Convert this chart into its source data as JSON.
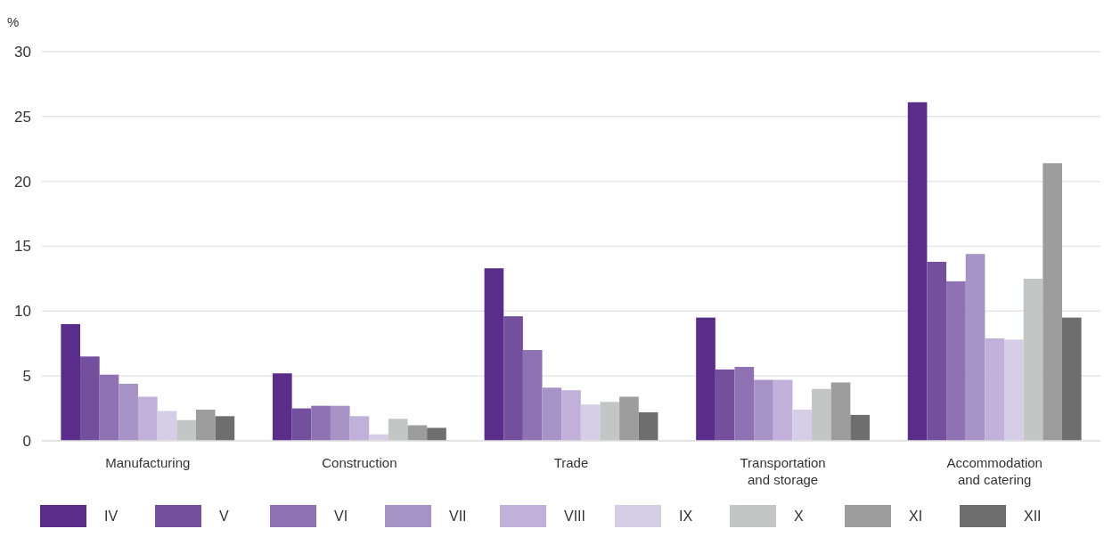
{
  "chart_data": {
    "type": "bar",
    "ylabel": "%",
    "categories": [
      "Manufacturing",
      "Construction",
      "Trade",
      "Transportation and storage",
      "Accommodation and catering"
    ],
    "series": [
      {
        "name": "IV",
        "color": "#5b2d8a",
        "values": [
          9.0,
          5.2,
          13.3,
          9.5,
          26.1
        ]
      },
      {
        "name": "V",
        "color": "#744f9e",
        "values": [
          6.5,
          2.5,
          9.6,
          5.5,
          13.8
        ]
      },
      {
        "name": "VI",
        "color": "#8e72b3",
        "values": [
          5.1,
          2.7,
          7.0,
          5.7,
          12.3
        ]
      },
      {
        "name": "VII",
        "color": "#a793c6",
        "values": [
          4.4,
          2.7,
          4.1,
          4.7,
          14.4
        ]
      },
      {
        "name": "VIII",
        "color": "#c0b0da",
        "values": [
          3.4,
          1.9,
          3.9,
          4.7,
          7.9
        ]
      },
      {
        "name": "IX",
        "color": "#d6cde6",
        "values": [
          2.3,
          0.5,
          2.8,
          2.4,
          7.8
        ]
      },
      {
        "name": "X",
        "color": "#c2c6c4",
        "values": [
          1.6,
          1.7,
          3.0,
          4.0,
          12.5
        ]
      },
      {
        "name": "XI",
        "color": "#9c9d9c",
        "values": [
          2.4,
          1.2,
          3.4,
          4.5,
          21.4
        ]
      },
      {
        "name": "XII",
        "color": "#6e6e6e",
        "values": [
          1.9,
          1.0,
          2.2,
          2.0,
          9.5
        ]
      }
    ],
    "ylim": [
      0,
      30
    ],
    "yticks": [
      0,
      5,
      10,
      15,
      20,
      25,
      30
    ],
    "grid": "y",
    "legend": "bottom"
  }
}
